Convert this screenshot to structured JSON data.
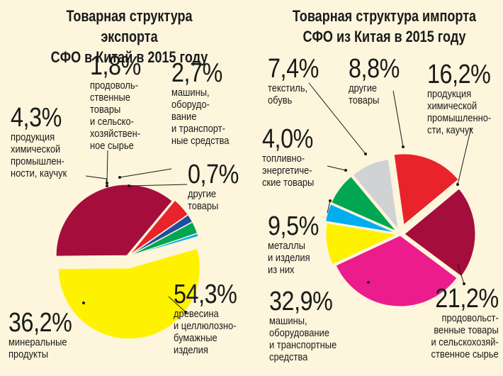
{
  "chart_data": [
    {
      "type": "pie",
      "title": "Товарная структура экспорта\nСФО в Китай в 2015 году",
      "slices": [
        {
          "value": 54.3,
          "pct_label": "54,3%",
          "label": "древесина\nи целлюлозно-\nбумажные\nизделия",
          "color": "#fff200"
        },
        {
          "value": 36.2,
          "pct_label": "36,2%",
          "label": "минеральные\nпродукты",
          "color": "#a50d3c"
        },
        {
          "value": 4.3,
          "pct_label": "4,3%",
          "label": "продукция\nхимической\nпромышлен-\nности, каучук",
          "color": "#e8232a"
        },
        {
          "value": 1.8,
          "pct_label": "1,8%",
          "label": "продоволь-\nственные\nтовары\nи сельско-\nхозяйствен-\nное сырье",
          "color": "#1d4fa0"
        },
        {
          "value": 2.7,
          "pct_label": "2,7%",
          "label": "машины,\nоборудо-\nвание\nи транспорт-\nные средства",
          "color": "#00a651"
        },
        {
          "value": 0.7,
          "pct_label": "0,7%",
          "label": "другие\nтовары",
          "color": "#00aeef"
        }
      ]
    },
    {
      "type": "pie",
      "title": "Товарная структура импорта\nСФО из Китая в 2015 году",
      "slices": [
        {
          "value": 16.2,
          "pct_label": "16,2%",
          "label": "продукция\nхимической\nпромышленно-\nсти, каучук",
          "color": "#e8232a"
        },
        {
          "value": 21.2,
          "pct_label": "21,2%",
          "label": "продовольст-\nвенные товары\nи сельскохозяй-\nственное сырье",
          "color": "#a50d3c"
        },
        {
          "value": 32.9,
          "pct_label": "32,9%",
          "label": "машины,\nоборудование\nи транспортные\nсредства",
          "color": "#ec1c8c"
        },
        {
          "value": 9.5,
          "pct_label": "9,5%",
          "label": "металлы\nи изделия\nиз них",
          "color": "#fff200"
        },
        {
          "value": 4.0,
          "pct_label": "4,0%",
          "label": "топливно-\nэнергетиче-\nские товары",
          "color": "#00aeef"
        },
        {
          "value": 7.4,
          "pct_label": "7,4%",
          "label": "текстиль,\nобувь",
          "color": "#00a651"
        },
        {
          "value": 8.8,
          "pct_label": "8,8%",
          "label": "другие\nтовары",
          "color": "#d0d2d3"
        }
      ]
    }
  ]
}
